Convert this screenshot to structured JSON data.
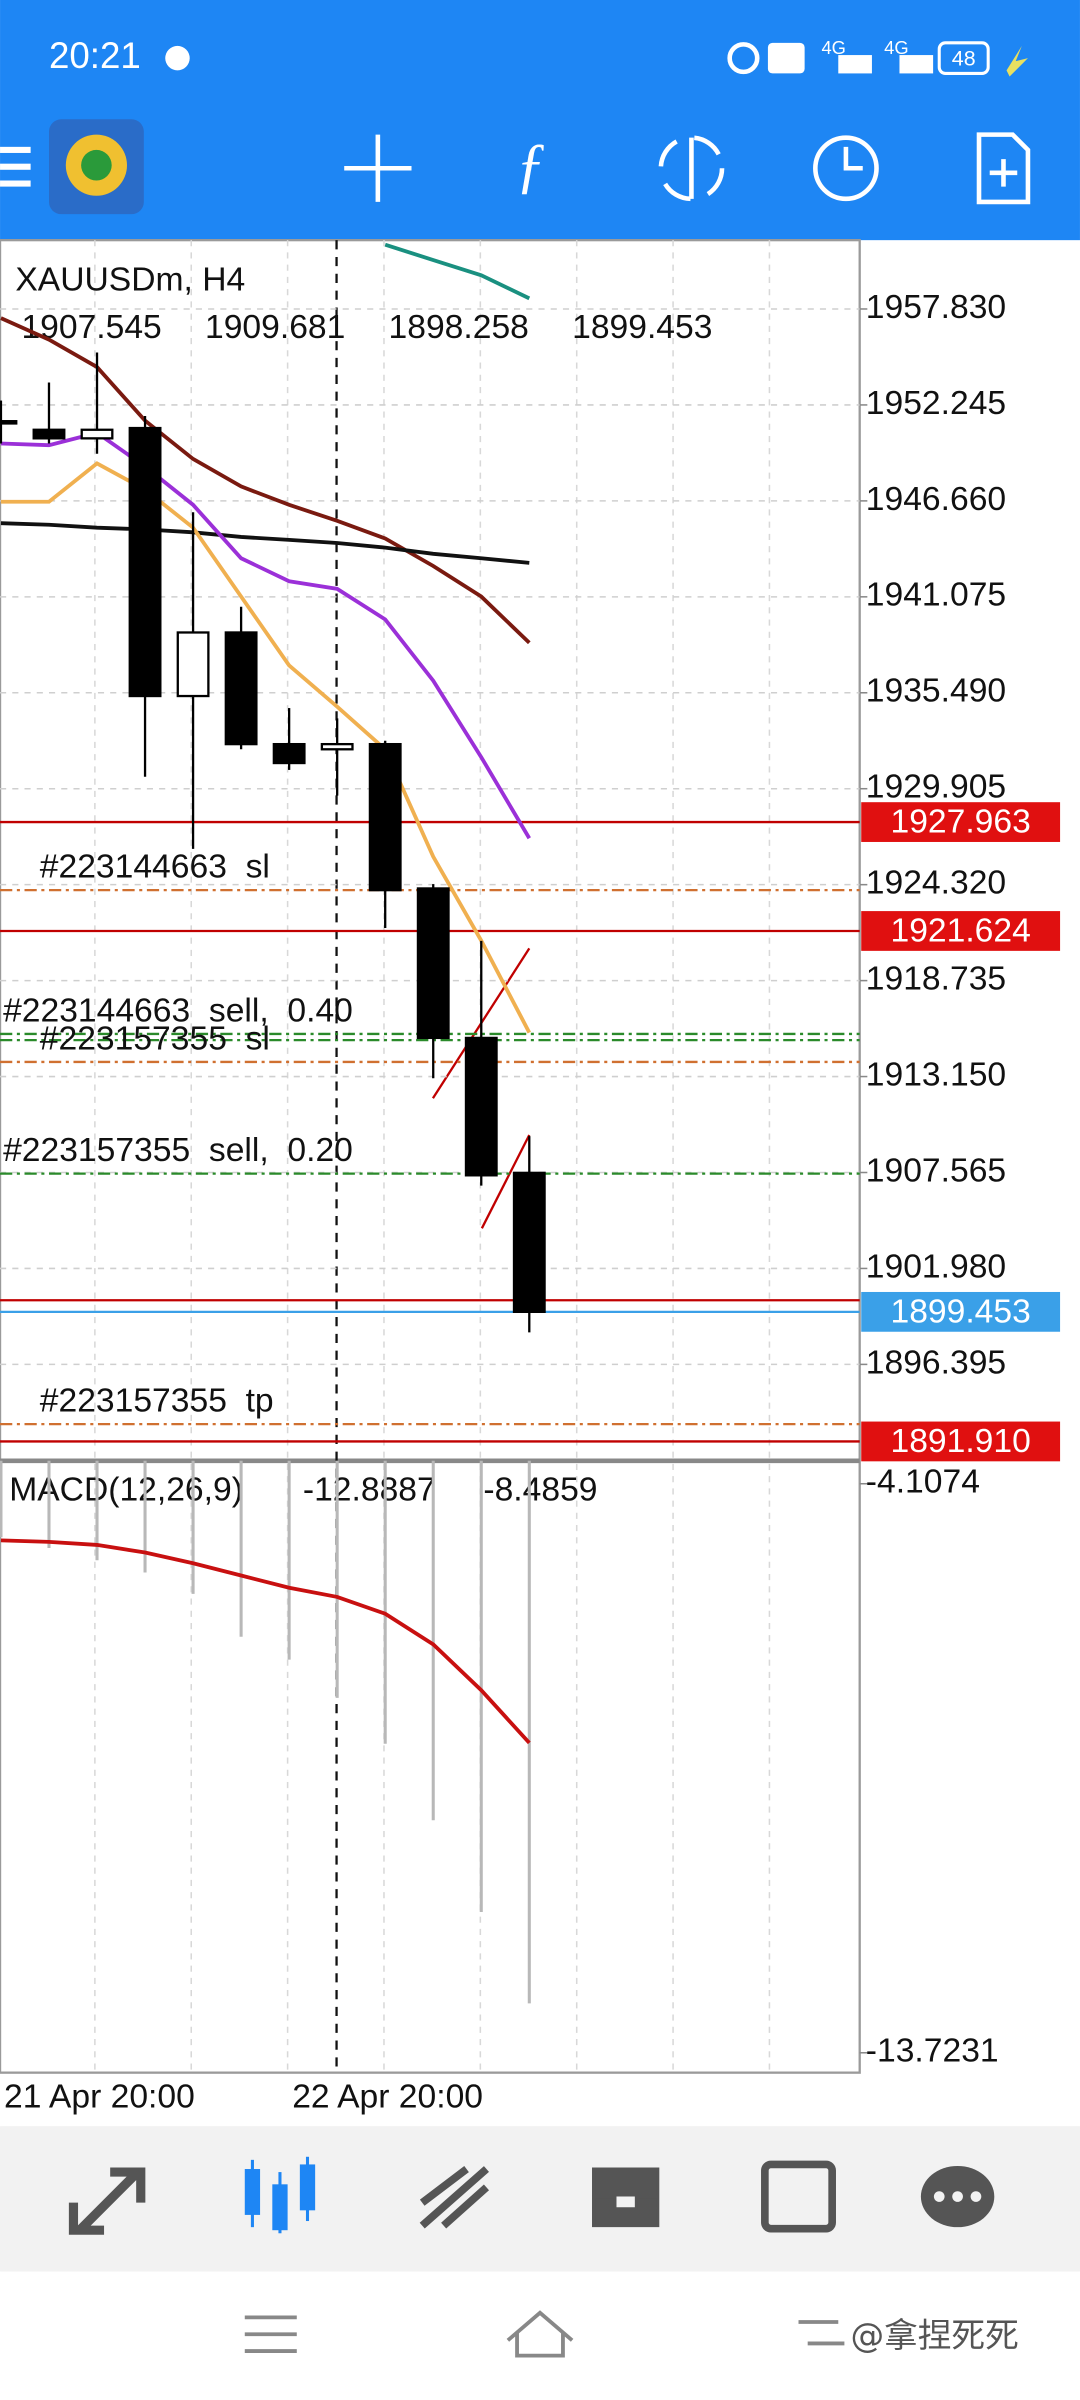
{
  "status_bar": {
    "time": "20:21",
    "signals": [
      "4G",
      "4G"
    ],
    "battery": "48"
  },
  "watermark": "@拿捏死死",
  "chart_data": [
    {
      "type": "candlestick",
      "title": "XAUUSDm, H4",
      "categories": [
        "21 Apr 20:00",
        null,
        null,
        null,
        null,
        null,
        "22 Apr 20:00",
        null,
        null,
        null,
        null,
        null
      ],
      "open": [
        1951.2,
        1950.8,
        1950.3,
        1950.9,
        1935.3,
        1939.0,
        1932.5,
        1932.2,
        1932.5,
        1924.1,
        1915.4,
        1907.545
      ],
      "high": [
        1952.5,
        1953.55,
        1955.3,
        1951.6,
        1946.0,
        1940.5,
        1934.6,
        1934.0,
        1932.7,
        1924.35,
        1921.05,
        1909.681
      ],
      "low": [
        1950.0,
        1950.0,
        1949.4,
        1930.6,
        1926.4,
        1932.2,
        1931.0,
        1929.5,
        1921.8,
        1913.05,
        1906.8,
        1898.258
      ],
      "close": [
        1951.3,
        1950.3,
        1950.8,
        1935.3,
        1939.0,
        1932.5,
        1931.4,
        1932.5,
        1924.0,
        1915.4,
        1907.4,
        1899.453
      ],
      "color_up": "#ffffff",
      "color_down": "#000000",
      "ylim": [
        1890.783,
        1961.837
      ],
      "yticks": [
        {
          "value": 1957.83,
          "label": "1957.830"
        },
        1952.245,
        {
          "value": 1946.66,
          "label": "1946.660"
        },
        1941.075,
        {
          "value": 1935.49,
          "label": "1935.490"
        },
        1929.905,
        {
          "value": 1924.32,
          "label": "1924.320"
        },
        1918.735,
        {
          "value": 1913.15,
          "label": "1913.150"
        },
        1907.565,
        {
          "value": 1901.98,
          "label": "1901.980"
        },
        1896.395
      ],
      "grid": true,
      "series": [
        {
          "color": "#1a9080",
          "values": [
            null,
            null,
            null,
            null,
            null,
            null,
            null,
            null,
            1961.57,
            1960.68,
            1959.79,
            1958.45
          ]
        },
        {
          "color": "#7a1a10",
          "values": [
            1957.3,
            1956.05,
            1954.45,
            1951.33,
            1949.1,
            1947.5,
            1946.43,
            1945.5,
            1944.47,
            1942.87,
            1941.09,
            1938.4
          ]
        },
        {
          "color": "#111111",
          "values": [
            1945.36,
            1945.27,
            1945.1,
            1945.0,
            1944.83,
            1944.56,
            1944.39,
            1944.21,
            1943.94,
            1943.58,
            1943.32,
            1943.05
          ]
        },
        {
          "color": "#9b30d8",
          "values": [
            1950.0,
            1949.9,
            1950.62,
            1948.66,
            1946.43,
            1943.32,
            1941.98,
            1941.54,
            1939.76,
            1936.19,
            1931.74,
            1927.02
          ]
        },
        {
          "color": "#f0b050",
          "values": [
            1946.61,
            1946.61,
            1948.84,
            1947.32,
            1945.1,
            1941.09,
            1937.08,
            1934.68,
            1932.19,
            1925.95,
            1921.06,
            1915.71
          ]
        }
      ],
      "levels": [
        {
          "value": 1927.963,
          "color": "#c00000",
          "style": "solid",
          "tagged": true
        },
        {
          "value": 1924.0,
          "color": "#d07030",
          "style": "dashdot",
          "text": "#223144663  sl"
        },
        {
          "value": 1921.624,
          "color": "#c00000",
          "style": "solid",
          "tagged": true
        },
        {
          "value": 1915.63,
          "color": "#2a8a2a",
          "style": "dashdot",
          "text": "#223144663  sell,  0.40"
        },
        {
          "value": 1915.27,
          "color": "#2a8a2a",
          "style": "dashdot"
        },
        {
          "value": 1914.0,
          "color": "#d07030",
          "style": "dashdot",
          "text": "#223157355  sl"
        },
        {
          "value": 1907.5,
          "color": "#2a8a2a",
          "style": "dashdot",
          "text": "#223157355  sell,  0.20"
        },
        {
          "value": 1900.13,
          "color": "#c00000",
          "style": "solid"
        },
        {
          "value": 1899.453,
          "color": "#3aa0e8",
          "style": "solid",
          "tagged": true
        },
        {
          "value": 1892.92,
          "color": "#d07030",
          "style": "dashdot",
          "text": "#223157355  tp"
        },
        {
          "value": 1891.91,
          "color": "#c00000",
          "style": "solid",
          "tagged": true,
          "label": "1891.910"
        }
      ]
    },
    {
      "type": "macd",
      "title": "MACD(12,26,9)",
      "ylim": [
        -14.059,
        -3.7197
      ],
      "yticks": [
        -4.1074,
        -13.7231
      ],
      "series": [
        {
          "style": "bar",
          "color": "#b8b8b8",
          "values": [
            -5.012,
            -5.193,
            -5.4,
            -5.607,
            -5.968,
            -6.692,
            -7.08,
            -7.726,
            -8.502,
            -9.794,
            -11.345,
            -12.8887
          ]
        },
        {
          "style": "line",
          "color": "#c81010",
          "values": [
            -5.064,
            -5.09,
            -5.141,
            -5.27,
            -5.451,
            -5.658,
            -5.865,
            -6.02,
            -6.304,
            -6.821,
            -7.597,
            -8.4859
          ]
        }
      ]
    }
  ]
}
